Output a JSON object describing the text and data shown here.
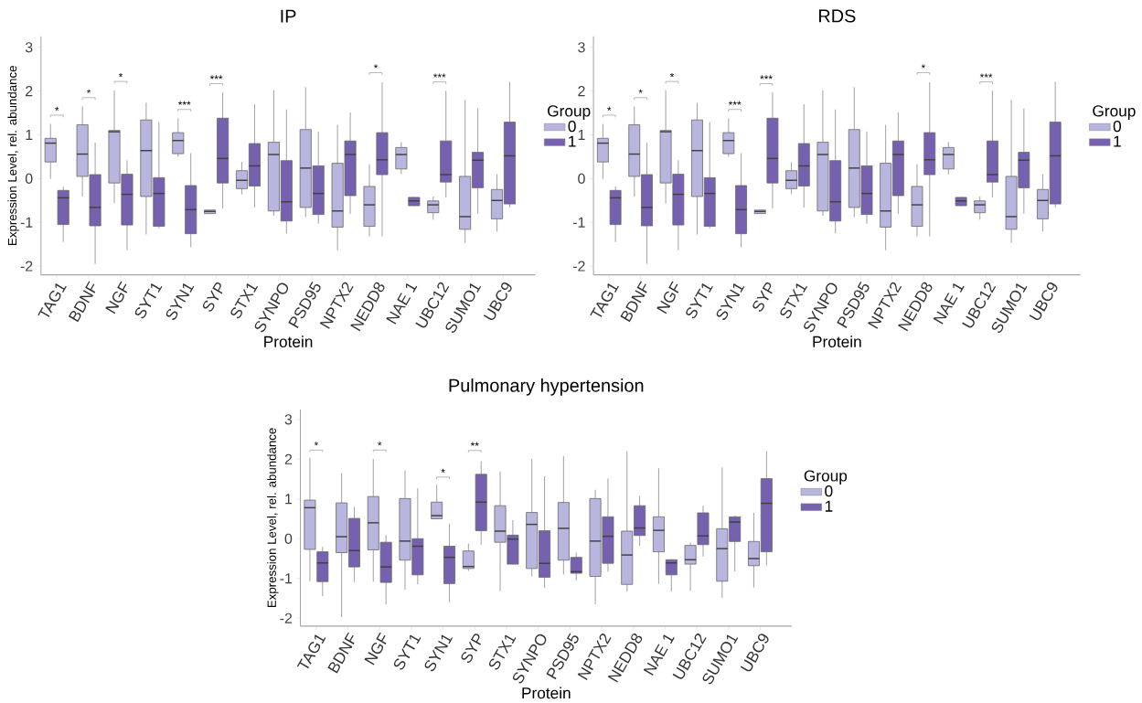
{
  "chart_data": [
    {
      "type": "box",
      "title": "IP",
      "xlabel": "Protein",
      "ylabel": "Expression Level, rel. abundance",
      "legend_title": "Group",
      "legend": "right",
      "ylim": [
        -2.2,
        3.25
      ],
      "yticks": [
        -2,
        -1,
        0,
        1,
        2,
        3
      ],
      "categories": [
        "TAG1",
        "BDNF",
        "NGF",
        "SYT1",
        "SYN1",
        "SYP",
        "STX1",
        "SYNPO",
        "PSD95",
        "NPTX2",
        "NEDD8",
        "NAE 1",
        "UBC12",
        "SUMO1",
        "UBC9"
      ],
      "series": [
        {
          "name": "0",
          "color": "#b8b6de",
          "boxes": [
            {
              "low": -0.01,
              "q1": 0.38,
              "median": 0.81,
              "q3": 0.92,
              "high": 1.25
            },
            {
              "low": -0.41,
              "q1": 0.05,
              "median": 0.56,
              "q3": 1.23,
              "high": 1.65
            },
            {
              "low": -0.56,
              "q1": -0.1,
              "median": 1.07,
              "q3": 1.1,
              "high": 2.02
            },
            {
              "low": -1.28,
              "q1": -0.41,
              "median": 0.64,
              "q3": 1.34,
              "high": 1.73
            },
            {
              "low": 0.5,
              "q1": 0.57,
              "median": 0.87,
              "q3": 1.05,
              "high": 1.38
            },
            {
              "low": -0.8,
              "q1": -0.8,
              "median": -0.75,
              "q3": -0.72,
              "high": -0.72
            },
            {
              "low": -0.36,
              "q1": -0.23,
              "median": -0.04,
              "q3": 0.18,
              "high": 0.38
            },
            {
              "low": -0.85,
              "q1": -0.74,
              "median": 0.55,
              "q3": 0.83,
              "high": 2.02
            },
            {
              "low": -0.88,
              "q1": -0.66,
              "median": 0.24,
              "q3": 1.12,
              "high": 2.09
            },
            {
              "low": -1.64,
              "q1": -1.11,
              "median": -0.74,
              "q3": 0.35,
              "high": 1.23
            },
            {
              "low": -1.32,
              "q1": -1.09,
              "median": -0.6,
              "q3": -0.18,
              "high": 0.33
            },
            {
              "low": 0.1,
              "q1": 0.22,
              "median": 0.55,
              "q3": 0.71,
              "high": 0.84
            },
            {
              "low": -0.94,
              "q1": -0.78,
              "median": -0.6,
              "q3": -0.51,
              "high": -0.41
            },
            {
              "low": -1.47,
              "q1": -1.16,
              "median": -0.87,
              "q3": 0.05,
              "high": 1.8
            },
            {
              "low": -1.21,
              "q1": -0.92,
              "median": -0.5,
              "q3": -0.25,
              "high": 0.1
            }
          ]
        },
        {
          "name": "1",
          "color": "#7661b0",
          "boxes": [
            {
              "low": -1.45,
              "q1": -1.05,
              "median": -0.44,
              "q3": -0.27,
              "high": -0.18
            },
            {
              "low": -1.95,
              "q1": -1.08,
              "median": -0.66,
              "q3": 0.09,
              "high": 0.82
            },
            {
              "low": -1.64,
              "q1": -1.06,
              "median": -0.36,
              "q3": 0.1,
              "high": 0.42
            },
            {
              "low": -1.14,
              "q1": -1.09,
              "median": -0.34,
              "q3": 0.02,
              "high": 1.29
            },
            {
              "low": -1.57,
              "q1": -1.26,
              "median": -0.71,
              "q3": -0.16,
              "high": 0.58
            },
            {
              "low": -0.69,
              "q1": -0.1,
              "median": 0.46,
              "q3": 1.38,
              "high": 1.97
            },
            {
              "low": -0.66,
              "q1": -0.17,
              "median": 0.29,
              "q3": 0.8,
              "high": 1.7
            },
            {
              "low": -1.25,
              "q1": -0.97,
              "median": -0.53,
              "q3": 0.41,
              "high": 1.58
            },
            {
              "low": -1.03,
              "q1": -0.82,
              "median": -0.34,
              "q3": 0.29,
              "high": 1.08
            },
            {
              "low": -0.81,
              "q1": -0.39,
              "median": 0.55,
              "q3": 0.86,
              "high": 1.51
            },
            {
              "low": -1.32,
              "q1": 0.09,
              "median": 0.43,
              "q3": 1.05,
              "high": 2.2
            },
            {
              "low": -0.63,
              "q1": -0.62,
              "median": -0.51,
              "q3": -0.43,
              "high": -0.42
            },
            {
              "low": -0.43,
              "q1": -0.08,
              "median": 0.09,
              "q3": 0.86,
              "high": 2.01
            },
            {
              "low": -0.8,
              "q1": -0.21,
              "median": 0.42,
              "q3": 0.6,
              "high": 1.6
            },
            {
              "low": -0.66,
              "q1": -0.58,
              "median": 0.52,
              "q3": 1.29,
              "high": 2.21
            }
          ]
        }
      ],
      "annotations": [
        "*",
        "*",
        "*",
        "***",
        "***",
        "*",
        "***"
      ]
    },
    {
      "type": "box",
      "title": "RDS",
      "xlabel": "Protein",
      "legend_title": "Group",
      "legend": "right",
      "ylim": [
        -2.2,
        3.25
      ],
      "yticks": [
        -2,
        -1,
        0,
        1,
        2,
        3
      ],
      "categories": [
        "TAG1",
        "BDNF",
        "NGF",
        "SYT1",
        "SYN1",
        "SYP",
        "STX1",
        "SYNPO",
        "PSD95",
        "NPTX2",
        "NEDD8",
        "NAE 1",
        "UBC12",
        "SUMO1",
        "UBC9"
      ],
      "series": [
        {
          "name": "0",
          "color": "#b8b6de",
          "boxes": [
            {
              "low": -0.01,
              "q1": 0.38,
              "median": 0.81,
              "q3": 0.92,
              "high": 1.25
            },
            {
              "low": -0.41,
              "q1": 0.05,
              "median": 0.56,
              "q3": 1.23,
              "high": 1.65
            },
            {
              "low": -0.56,
              "q1": -0.1,
              "median": 1.07,
              "q3": 1.1,
              "high": 2.02
            },
            {
              "low": -1.28,
              "q1": -0.41,
              "median": 0.64,
              "q3": 1.34,
              "high": 1.73
            },
            {
              "low": 0.5,
              "q1": 0.57,
              "median": 0.87,
              "q3": 1.05,
              "high": 1.38
            },
            {
              "low": -0.8,
              "q1": -0.8,
              "median": -0.75,
              "q3": -0.72,
              "high": -0.72
            },
            {
              "low": -0.36,
              "q1": -0.23,
              "median": -0.04,
              "q3": 0.18,
              "high": 0.38
            },
            {
              "low": -0.85,
              "q1": -0.74,
              "median": 0.55,
              "q3": 0.83,
              "high": 2.02
            },
            {
              "low": -0.88,
              "q1": -0.66,
              "median": 0.24,
              "q3": 1.12,
              "high": 2.09
            },
            {
              "low": -1.64,
              "q1": -1.11,
              "median": -0.74,
              "q3": 0.35,
              "high": 1.23
            },
            {
              "low": -1.32,
              "q1": -1.09,
              "median": -0.6,
              "q3": -0.18,
              "high": 0.33
            },
            {
              "low": 0.1,
              "q1": 0.22,
              "median": 0.55,
              "q3": 0.71,
              "high": 0.84
            },
            {
              "low": -0.94,
              "q1": -0.78,
              "median": -0.6,
              "q3": -0.51,
              "high": -0.41
            },
            {
              "low": -1.47,
              "q1": -1.16,
              "median": -0.87,
              "q3": 0.05,
              "high": 1.8
            },
            {
              "low": -1.21,
              "q1": -0.92,
              "median": -0.5,
              "q3": -0.25,
              "high": 0.1
            }
          ]
        },
        {
          "name": "1",
          "color": "#7661b0",
          "boxes": [
            {
              "low": -1.45,
              "q1": -1.05,
              "median": -0.44,
              "q3": -0.27,
              "high": -0.18
            },
            {
              "low": -1.95,
              "q1": -1.08,
              "median": -0.66,
              "q3": 0.09,
              "high": 0.82
            },
            {
              "low": -1.64,
              "q1": -1.06,
              "median": -0.36,
              "q3": 0.1,
              "high": 0.42
            },
            {
              "low": -1.14,
              "q1": -1.09,
              "median": -0.34,
              "q3": 0.02,
              "high": 1.29
            },
            {
              "low": -1.57,
              "q1": -1.26,
              "median": -0.71,
              "q3": -0.16,
              "high": 0.58
            },
            {
              "low": -0.69,
              "q1": -0.1,
              "median": 0.46,
              "q3": 1.38,
              "high": 1.97
            },
            {
              "low": -0.66,
              "q1": -0.17,
              "median": 0.29,
              "q3": 0.8,
              "high": 1.7
            },
            {
              "low": -1.25,
              "q1": -0.97,
              "median": -0.53,
              "q3": 0.41,
              "high": 1.58
            },
            {
              "low": -1.03,
              "q1": -0.82,
              "median": -0.34,
              "q3": 0.29,
              "high": 1.08
            },
            {
              "low": -0.81,
              "q1": -0.39,
              "median": 0.55,
              "q3": 0.86,
              "high": 1.51
            },
            {
              "low": -1.32,
              "q1": 0.09,
              "median": 0.43,
              "q3": 1.05,
              "high": 2.2
            },
            {
              "low": -0.63,
              "q1": -0.62,
              "median": -0.51,
              "q3": -0.43,
              "high": -0.42
            },
            {
              "low": -0.43,
              "q1": -0.08,
              "median": 0.09,
              "q3": 0.86,
              "high": 2.01
            },
            {
              "low": -0.8,
              "q1": -0.21,
              "median": 0.42,
              "q3": 0.6,
              "high": 1.6
            },
            {
              "low": -0.66,
              "q1": -0.58,
              "median": 0.52,
              "q3": 1.29,
              "high": 2.21
            }
          ]
        }
      ],
      "annotations": [
        "*",
        "*",
        "*",
        "***",
        "***",
        "*",
        "***"
      ]
    },
    {
      "type": "box",
      "title": "Pulmonary hypertension",
      "xlabel": "Protein",
      "ylabel": "Expression Level, rel. abundance",
      "legend_title": "Group",
      "legend": "right",
      "ylim": [
        -2.2,
        3.25
      ],
      "yticks": [
        -2,
        -1,
        0,
        1,
        2,
        3
      ],
      "categories": [
        "TAG1",
        "BDNF",
        "NGF",
        "SYT1",
        "SYN1",
        "SYP",
        "STX1",
        "SYNPO",
        "PSD95",
        "NPTX2",
        "NEDD8",
        "NAE 1",
        "UBC12",
        "SUMO1",
        "UBC9"
      ],
      "series": [
        {
          "name": "0",
          "color": "#b8b6de",
          "boxes": [
            {
              "low": -1.07,
              "q1": -0.27,
              "median": 0.78,
              "q3": 0.97,
              "high": 2.03
            },
            {
              "low": -1.97,
              "q1": -0.35,
              "median": 0.05,
              "q3": 0.9,
              "high": 1.65
            },
            {
              "low": -1.08,
              "q1": -0.28,
              "median": 0.4,
              "q3": 1.06,
              "high": 2.01
            },
            {
              "low": -1.29,
              "q1": -0.54,
              "median": -0.06,
              "q3": 1.01,
              "high": 1.72
            },
            {
              "low": 0.49,
              "q1": 0.5,
              "median": 0.58,
              "q3": 0.92,
              "high": 1.36
            },
            {
              "low": -0.81,
              "q1": -0.75,
              "median": -0.7,
              "q3": -0.31,
              "high": -0.12
            },
            {
              "low": -1.32,
              "q1": -0.09,
              "median": 0.19,
              "q3": 0.83,
              "high": 1.69
            },
            {
              "low": -0.95,
              "q1": -0.75,
              "median": 0.36,
              "q3": 0.66,
              "high": 2.01
            },
            {
              "low": -0.9,
              "q1": -0.54,
              "median": 0.26,
              "q3": 0.91,
              "high": 2.08
            },
            {
              "low": -1.65,
              "q1": -0.95,
              "median": -0.06,
              "q3": 1.01,
              "high": 1.23
            },
            {
              "low": -1.33,
              "q1": -1.15,
              "median": -0.41,
              "q3": 0.19,
              "high": 2.2
            },
            {
              "low": -1.14,
              "q1": -0.33,
              "median": 0.21,
              "q3": 0.55,
              "high": 1.77
            },
            {
              "low": -1.31,
              "q1": -0.64,
              "median": -0.53,
              "q3": -0.17,
              "high": -0.1
            },
            {
              "low": -1.49,
              "q1": -1.07,
              "median": -0.25,
              "q3": 0.25,
              "high": 1.79
            },
            {
              "low": -1.23,
              "q1": -0.68,
              "median": -0.5,
              "q3": -0.07,
              "high": 0.65
            }
          ]
        },
        {
          "name": "1",
          "color": "#7661b0",
          "boxes": [
            {
              "low": -1.45,
              "q1": -1.08,
              "median": -0.61,
              "q3": -0.33,
              "high": -0.2
            },
            {
              "low": -1.09,
              "q1": -0.71,
              "median": -0.3,
              "q3": 0.51,
              "high": 0.8
            },
            {
              "low": -1.65,
              "q1": -1.1,
              "median": -0.71,
              "q3": -0.09,
              "high": 0.09
            },
            {
              "low": -1.15,
              "q1": -0.91,
              "median": -0.19,
              "q3": 0.0,
              "high": 1.27
            },
            {
              "low": -1.6,
              "q1": -1.13,
              "median": -0.47,
              "q3": -0.19,
              "high": 0.38
            },
            {
              "low": -0.15,
              "q1": 0.2,
              "median": 0.92,
              "q3": 1.62,
              "high": 1.95
            },
            {
              "low": -0.65,
              "q1": -0.64,
              "median": -0.01,
              "q3": 0.09,
              "high": 0.47
            },
            {
              "low": -1.24,
              "q1": -0.97,
              "median": -0.62,
              "q3": 0.2,
              "high": 1.57
            },
            {
              "low": -1.05,
              "q1": -0.87,
              "median": -0.83,
              "q3": -0.47,
              "high": -0.35
            },
            {
              "low": -0.83,
              "q1": -0.62,
              "median": 0.06,
              "q3": 0.55,
              "high": 1.51
            },
            {
              "low": -0.18,
              "q1": 0.08,
              "median": 0.27,
              "q3": 0.83,
              "high": 1.07
            },
            {
              "low": -1.33,
              "q1": -0.91,
              "median": -0.61,
              "q3": -0.53,
              "high": -0.51
            },
            {
              "low": -0.45,
              "q1": -0.15,
              "median": 0.07,
              "q3": 0.65,
              "high": 0.83
            },
            {
              "low": -0.82,
              "q1": -0.07,
              "median": 0.42,
              "q3": 0.55,
              "high": 0.58
            },
            {
              "low": -0.68,
              "q1": -0.33,
              "median": 0.89,
              "q3": 1.51,
              "high": 2.2
            }
          ]
        }
      ],
      "annotations": [
        "*",
        "*",
        "*",
        "**"
      ]
    }
  ]
}
